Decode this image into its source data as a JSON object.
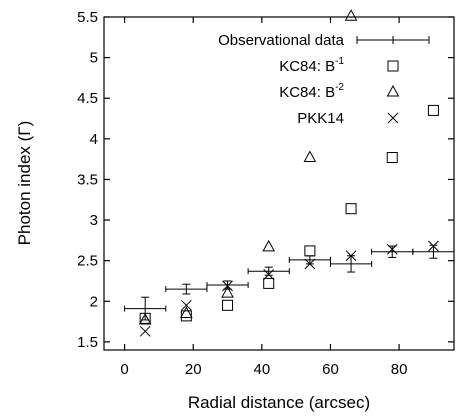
{
  "chart_data": {
    "type": "scatter",
    "xlabel": "Radial distance (arcsec)",
    "ylabel": "Photon index (Γ)",
    "xlim": [
      -6,
      96
    ],
    "ylim": [
      1.4,
      5.5
    ],
    "xticks": [
      0,
      20,
      40,
      60,
      80
    ],
    "yticks": [
      1.5,
      2,
      2.5,
      3,
      3.5,
      4,
      4.5,
      5,
      5.5
    ],
    "xtick_labels": [
      "0",
      "20",
      "40",
      "60",
      "80"
    ],
    "ytick_labels": [
      "1.5",
      "2",
      "2.5",
      "3",
      "3.5",
      "4",
      "4.5",
      "5",
      "5.5"
    ],
    "grid": false,
    "legend_position": "top-right",
    "series": [
      {
        "name": "Observational data",
        "marker": "errorbar",
        "x": [
          6,
          18,
          30,
          42,
          54,
          66,
          78,
          90
        ],
        "y": [
          1.91,
          2.15,
          2.2,
          2.37,
          2.51,
          2.46,
          2.61,
          2.61
        ],
        "xerr": [
          6,
          6,
          6,
          6,
          6,
          6,
          6,
          6
        ],
        "yerr": [
          0.14,
          0.06,
          0.05,
          0.05,
          0.05,
          0.1,
          0.07,
          0.08
        ]
      },
      {
        "name": "KC84: B",
        "name_exponent": "-1",
        "marker": "square",
        "x": [
          6,
          18,
          30,
          42,
          54,
          66,
          78,
          90
        ],
        "y": [
          1.79,
          1.82,
          1.95,
          2.22,
          2.62,
          3.14,
          3.77,
          4.35
        ]
      },
      {
        "name": "KC84: B",
        "name_exponent": "-2",
        "marker": "triangle",
        "x": [
          6,
          18,
          30,
          42,
          54,
          66
        ],
        "y": [
          1.77,
          1.85,
          2.1,
          2.67,
          3.77,
          5.51
        ]
      },
      {
        "name": "PKK14",
        "marker": "cross",
        "x": [
          6,
          18,
          30,
          42,
          54,
          66,
          78,
          90
        ],
        "y": [
          1.63,
          1.95,
          2.19,
          2.33,
          2.46,
          2.56,
          2.64,
          2.68
        ]
      }
    ]
  }
}
